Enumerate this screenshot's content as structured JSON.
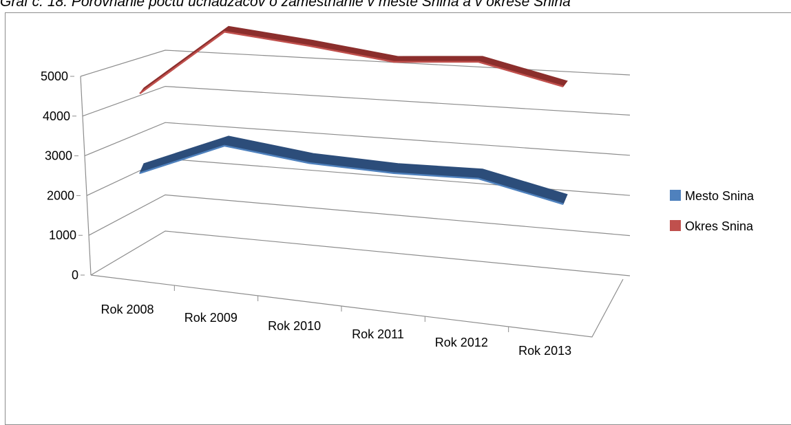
{
  "caption": "Graf č. 18: Porovnanie počtu uchádzačov o zamestnanie v meste Snina a v okrese Snina",
  "chart_data": {
    "type": "line",
    "categories": [
      "Rok 2008",
      "Rok 2009",
      "Rok 2010",
      "Rok 2011",
      "Rok 2012",
      "Rok 2013"
    ],
    "y_ticks": [
      "0",
      "1000",
      "2000",
      "3000",
      "4000",
      "5000"
    ],
    "ylim": [
      0,
      5000
    ],
    "grid": true,
    "legend_position": "right",
    "series": [
      {
        "name": "Mesto Snina",
        "color": "#4f81bd",
        "values": [
          1800,
          2450,
          2150,
          2000,
          1950,
          1450
        ]
      },
      {
        "name": "Okres Snina",
        "color": "#c0504d",
        "values": [
          3450,
          4850,
          4650,
          4400,
          4500,
          4050
        ]
      }
    ]
  }
}
